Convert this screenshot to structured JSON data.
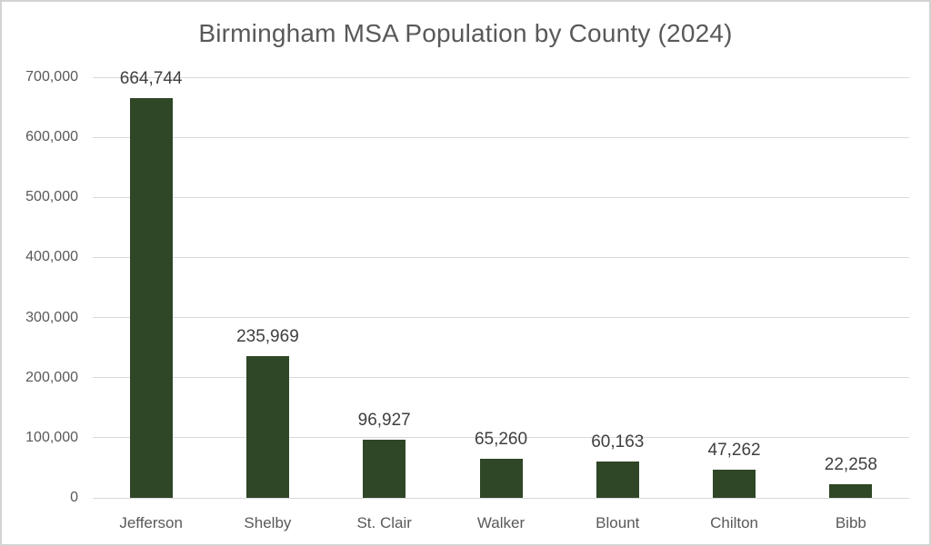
{
  "frame": {
    "background_color": "#ffffff",
    "border_color": "#d3d3d3"
  },
  "chart_data": {
    "type": "bar",
    "title": "Birmingham MSA Population by County (2024)",
    "categories": [
      "Jefferson",
      "Shelby",
      "St. Clair",
      "Walker",
      "Blount",
      "Chilton",
      "Bibb"
    ],
    "values": [
      664744,
      235969,
      96927,
      65260,
      60163,
      47262,
      22258
    ],
    "data_labels": [
      "664,744",
      "235,969",
      "96,927",
      "65,260",
      "60,163",
      "47,262",
      "22,258"
    ],
    "xlabel": "",
    "ylabel": "",
    "ylim": [
      0,
      700000
    ],
    "y_tick_interval": 100000,
    "y_tick_labels": [
      "0",
      "100,000",
      "200,000",
      "300,000",
      "400,000",
      "500,000",
      "600,000",
      "700,000"
    ],
    "grid": true,
    "legend_position": "none",
    "colors": {
      "bar": "#2F4627",
      "title": "#595959",
      "axis_labels": "#595959",
      "data_labels": "#3f3f3f",
      "gridline": "#d9d9d9"
    }
  }
}
